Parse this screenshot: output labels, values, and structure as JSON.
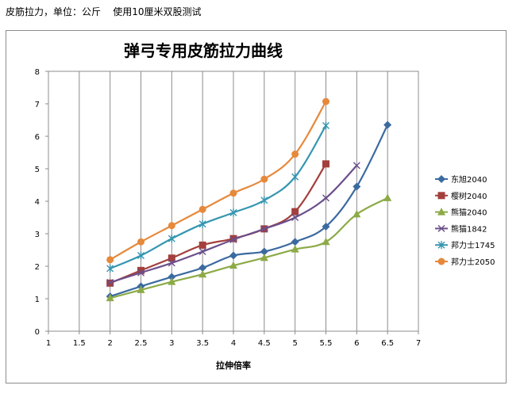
{
  "caption": "皮筋拉力，单位：公斤    使用10厘米双股测试",
  "chart_data": {
    "type": "line",
    "title": "弹弓专用皮筋拉力曲线",
    "xlabel": "拉伸倍率",
    "ylabel": "",
    "xlim": [
      1,
      7
    ],
    "ylim": [
      0,
      8
    ],
    "x_ticks": [
      "1",
      "1.5",
      "2",
      "2.5",
      "3",
      "3.5",
      "4",
      "4.5",
      "5",
      "5.5",
      "6",
      "6.5",
      "7"
    ],
    "y_ticks": [
      "0",
      "1",
      "2",
      "3",
      "4",
      "5",
      "6",
      "7",
      "8"
    ],
    "grid": "vertical",
    "legend_position": "right",
    "series": [
      {
        "name": "东旭2040",
        "color": "#3b6aa0",
        "marker": "diamond",
        "x": [
          2,
          2.5,
          3,
          3.5,
          4,
          4.5,
          5,
          5.5,
          6,
          6.5
        ],
        "values": [
          1.07,
          1.38,
          1.67,
          1.95,
          2.33,
          2.45,
          2.75,
          3.22,
          4.45,
          6.35
        ]
      },
      {
        "name": "樱树2040",
        "color": "#a33f3c",
        "marker": "square",
        "x": [
          2,
          2.5,
          3,
          3.5,
          4,
          4.5,
          5,
          5.5
        ],
        "values": [
          1.48,
          1.87,
          2.25,
          2.65,
          2.85,
          3.15,
          3.68,
          5.15
        ]
      },
      {
        "name": "熊猫2040",
        "color": "#8caa46",
        "marker": "triangle",
        "x": [
          2,
          2.5,
          3,
          3.5,
          4,
          4.5,
          5,
          5.5,
          6,
          6.5
        ],
        "values": [
          1.02,
          1.27,
          1.52,
          1.75,
          2.02,
          2.26,
          2.52,
          2.75,
          3.6,
          4.1
        ]
      },
      {
        "name": "熊猫1842",
        "color": "#6b4f8b",
        "marker": "x",
        "x": [
          2,
          2.5,
          3,
          3.5,
          4,
          4.5,
          5,
          5.5,
          6
        ],
        "values": [
          1.5,
          1.8,
          2.1,
          2.45,
          2.82,
          3.15,
          3.5,
          4.1,
          5.1
        ]
      },
      {
        "name": "邦力士1745",
        "color": "#3596b0",
        "marker": "star",
        "x": [
          2,
          2.5,
          3,
          3.5,
          4,
          4.5,
          5,
          5.5
        ],
        "values": [
          1.93,
          2.33,
          2.85,
          3.3,
          3.65,
          4.03,
          4.75,
          6.33
        ]
      },
      {
        "name": "邦力士2050",
        "color": "#e6893b",
        "marker": "circle",
        "x": [
          2,
          2.5,
          3,
          3.5,
          4,
          4.5,
          5,
          5.5
        ],
        "values": [
          2.2,
          2.75,
          3.25,
          3.75,
          4.25,
          4.68,
          5.45,
          7.07
        ]
      }
    ]
  }
}
